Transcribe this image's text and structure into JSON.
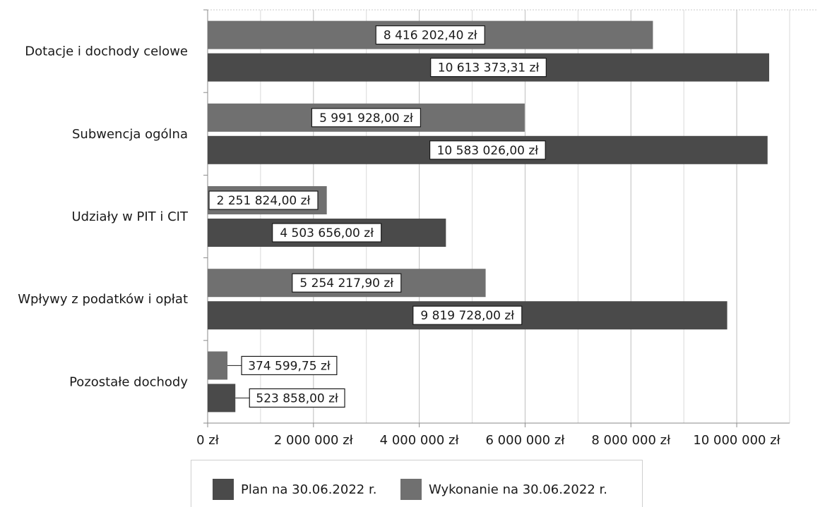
{
  "chart_data": {
    "type": "bar",
    "orientation": "horizontal",
    "categories": [
      "Dotacje i dochody celowe",
      "Subwencja ogólna",
      "Udziały w PIT i CIT",
      "Wpływy z podatków i opłat",
      "Pozostałe dochody"
    ],
    "series": [
      {
        "name": "Wykonanie na 30.06.2022 r.",
        "color": "#707070",
        "values": [
          8416202.4,
          5991928.0,
          2251824.0,
          5254217.9,
          374599.75
        ],
        "labels": [
          "8 416 202,40 zł",
          "5 991 928,00 zł",
          "2 251 824,00 zł",
          "5 254 217,90 zł",
          "374 599,75 zł"
        ]
      },
      {
        "name": "Plan na 30.06.2022 r.",
        "color": "#4a4a4a",
        "values": [
          10613373.31,
          10583026.0,
          4503656.0,
          9819728.0,
          523858.0
        ],
        "labels": [
          "10 613 373,31 zł",
          "10 583 026,00 zł",
          "4 503 656,00 zł",
          "9 819 728,00 zł",
          "523 858,00 zł"
        ]
      }
    ],
    "xlim": [
      0,
      11000000
    ],
    "xticks": [
      0,
      2000000,
      4000000,
      6000000,
      8000000,
      10000000
    ],
    "xtick_labels": [
      "0 zł",
      "2 000 000 zł",
      "4 000 000 zł",
      "6 000 000 zł",
      "8 000 000 zł",
      "10 000 000 zł"
    ],
    "grid": true,
    "legend_position": "bottom",
    "legend_order": [
      "Plan na 30.06.2022 r.",
      "Wykonanie na 30.06.2022 r."
    ]
  }
}
